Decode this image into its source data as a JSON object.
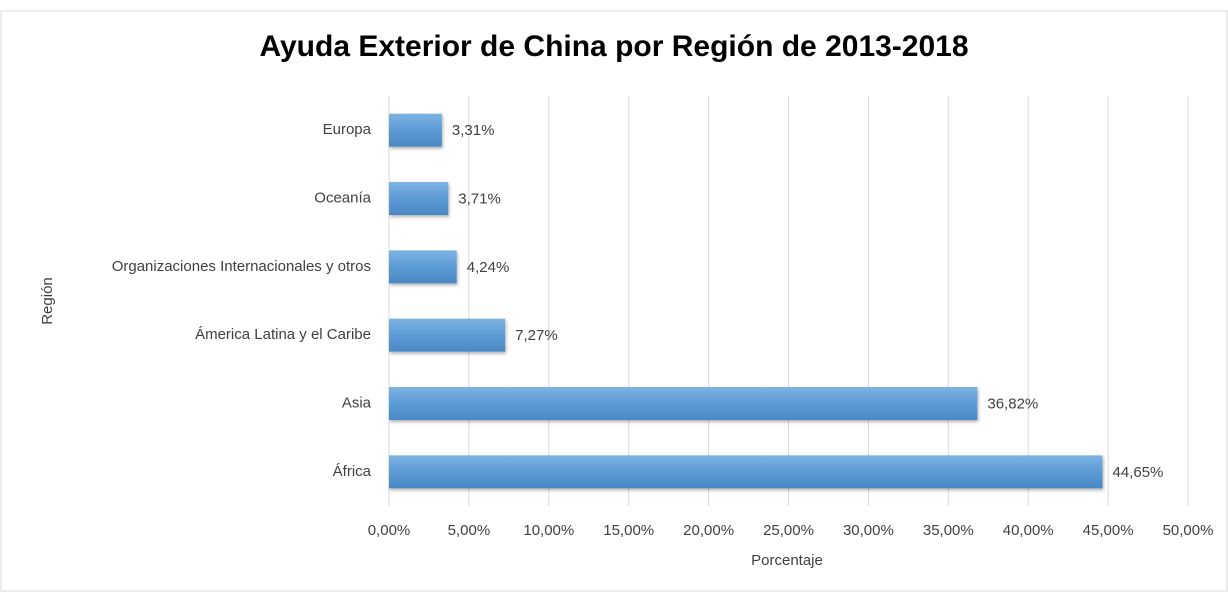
{
  "chart_data": {
    "type": "bar",
    "orientation": "horizontal",
    "title": "Ayuda Exterior de China por Región de 2013-2018",
    "x_label": "Porcentaje",
    "y_label": "Región",
    "categories": [
      "Europa",
      "Oceanía",
      "Organizaciones Internacionales y otros",
      "Ámerica Latina y el Caribe",
      "Asia",
      "África"
    ],
    "values": [
      3.31,
      3.71,
      4.24,
      7.27,
      36.82,
      44.65
    ],
    "value_labels": [
      "3,31%",
      "3,71%",
      "4,24%",
      "7,27%",
      "36,82%",
      "44,65%"
    ],
    "color": "#5b9bd5",
    "xlim": [
      0,
      50
    ],
    "xticks": [
      {
        "value": 0,
        "label": "0,00%"
      },
      {
        "value": 5,
        "label": "5,00%"
      },
      {
        "value": 10,
        "label": "10,00%"
      },
      {
        "value": 15,
        "label": "15,00%"
      },
      {
        "value": 20,
        "label": "20,00%"
      },
      {
        "value": 25,
        "label": "25,00%"
      },
      {
        "value": 30,
        "label": "30,00%"
      },
      {
        "value": 35,
        "label": "35,00%"
      },
      {
        "value": 40,
        "label": "40,00%"
      },
      {
        "value": 45,
        "label": "45,00%"
      },
      {
        "value": 50,
        "label": "50,00%"
      }
    ],
    "grid": true
  }
}
